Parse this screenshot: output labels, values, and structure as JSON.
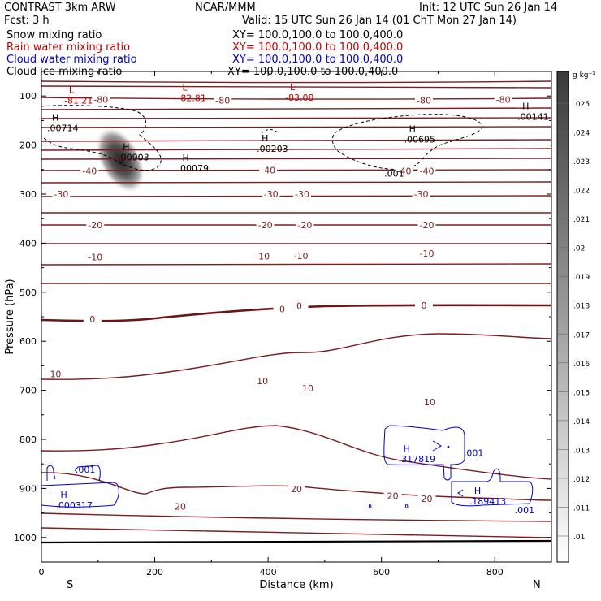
{
  "header": {
    "left1": "CONTRAST  3km ARW",
    "left2": "Fcst:    3 h",
    "center": "NCAR/MMM",
    "init": "Init: 12 UTC Sun 26 Jan 14",
    "valid": "Valid: 15 UTC Sun 26 Jan 14 (01 ChT Mon 27 Jan 14)",
    "fields": [
      {
        "name": "Snow mixing ratio",
        "xy": "XY=  100.0,100.0 to 100.0,400.0",
        "color": "#000000"
      },
      {
        "name": "Rain water mixing ratio",
        "xy": "XY=  100.0,100.0 to 100.0,400.0",
        "color": "#c00000"
      },
      {
        "name": "Cloud water mixing ratio",
        "xy": "XY=  100.0,100.0 to 100.0,400.0",
        "color": "#0000cc"
      },
      {
        "name": "Cloud ice mixing ratio",
        "xy": "XY=  100.0,100.0 to 100.0,400.0",
        "color": "#000000"
      }
    ]
  },
  "chart_data": {
    "type": "contour",
    "xlabel": "Distance (km)",
    "ylabel": "Pressure (hPa)",
    "xlim": [
      0,
      900
    ],
    "ylim": [
      1050,
      50
    ],
    "x_ticks": [
      0,
      200,
      400,
      600,
      800
    ],
    "y_ticks": [
      100,
      200,
      300,
      400,
      500,
      600,
      700,
      800,
      900,
      1000
    ],
    "x_end_labels": {
      "left": "S",
      "right": "N"
    },
    "colorbar": {
      "unit": "g kg⁻¹",
      "ticks": [
        ".01",
        ".011",
        ".012",
        ".013",
        ".014",
        ".015",
        ".016",
        ".017",
        ".018",
        ".019",
        ".02",
        ".021",
        ".022",
        ".023",
        ".024",
        ".025"
      ]
    },
    "temperature_contour_labels": [
      {
        "text": "-80",
        "x": 105,
        "p": 107
      },
      {
        "text": "-80",
        "x": 320,
        "p": 109
      },
      {
        "text": "-80",
        "x": 675,
        "p": 109
      },
      {
        "text": "-80",
        "x": 815,
        "p": 107
      },
      {
        "text": "-40",
        "x": 85,
        "p": 253
      },
      {
        "text": "-40",
        "x": 400,
        "p": 251
      },
      {
        "text": "-40",
        "x": 640,
        "p": 253
      },
      {
        "text": "-40",
        "x": 680,
        "p": 253
      },
      {
        "text": "-30",
        "x": 35,
        "p": 300
      },
      {
        "text": "-30",
        "x": 405,
        "p": 300
      },
      {
        "text": "-30",
        "x": 460,
        "p": 300
      },
      {
        "text": "-30",
        "x": 670,
        "p": 300
      },
      {
        "text": "-20",
        "x": 95,
        "p": 363
      },
      {
        "text": "-20",
        "x": 395,
        "p": 363
      },
      {
        "text": "-20",
        "x": 465,
        "p": 363
      },
      {
        "text": "-20",
        "x": 680,
        "p": 363
      },
      {
        "text": "-10",
        "x": 95,
        "p": 428
      },
      {
        "text": "-10",
        "x": 390,
        "p": 427
      },
      {
        "text": "-10",
        "x": 458,
        "p": 426
      },
      {
        "text": "-10",
        "x": 680,
        "p": 421
      },
      {
        "text": "0",
        "x": 90,
        "p": 555
      },
      {
        "text": "0",
        "x": 425,
        "p": 534
      },
      {
        "text": "0",
        "x": 455,
        "p": 528
      },
      {
        "text": "0",
        "x": 675,
        "p": 527
      },
      {
        "text": "10",
        "x": 25,
        "p": 667
      },
      {
        "text": "10",
        "x": 390,
        "p": 681
      },
      {
        "text": "10",
        "x": 470,
        "p": 696
      },
      {
        "text": "10",
        "x": 685,
        "p": 724
      },
      {
        "text": "20",
        "x": 245,
        "p": 937
      },
      {
        "text": "20",
        "x": 450,
        "p": 901
      },
      {
        "text": "20",
        "x": 620,
        "p": 915
      },
      {
        "text": "20",
        "x": 680,
        "p": 921
      }
    ],
    "extrema": [
      {
        "type": "L",
        "value": "-81.21",
        "x": 40,
        "p": 104,
        "color": "#c00000"
      },
      {
        "type": "L",
        "value": "-82.81",
        "x": 240,
        "p": 99,
        "color": "#c00000"
      },
      {
        "type": "L",
        "value": "-83.08",
        "x": 430,
        "p": 98,
        "color": "#c00000"
      },
      {
        "type": "H",
        "value": ".00714",
        "x": 10,
        "p": 160,
        "color": "#000000"
      },
      {
        "type": "H",
        "value": ".00903",
        "x": 135,
        "p": 220,
        "color": "#000000"
      },
      {
        "type": "H",
        "value": ".00079",
        "x": 240,
        "p": 242,
        "color": "#000000"
      },
      {
        "type": "H",
        "value": ".00203",
        "x": 380,
        "p": 202,
        "color": "#000000"
      },
      {
        "type": "H",
        "value": ".00695",
        "x": 640,
        "p": 183,
        "color": "#000000"
      },
      {
        "type": "H",
        "value": ".00141",
        "x": 840,
        "p": 137,
        "color": "#000000"
      },
      {
        "type": "H",
        "value": ".317819",
        "x": 630,
        "p": 835,
        "color": "#0000cc"
      },
      {
        "type": "H",
        "value": ".189413",
        "x": 755,
        "p": 921,
        "color": "#0000cc"
      },
      {
        "type": "H",
        "value": ".000317",
        "x": 25,
        "p": 929,
        "color": "#0000cc"
      }
    ],
    "other_labels": [
      {
        "text": ".001",
        "x": 605,
        "p": 258,
        "color": "#000000"
      },
      {
        "text": ".001",
        "x": 745,
        "p": 827,
        "color": "#0000cc"
      },
      {
        "text": ".001",
        "x": 835,
        "p": 944,
        "color": "#0000cc"
      },
      {
        "text": ".001",
        "x": 60,
        "p": 861,
        "color": "#0000cc"
      }
    ]
  }
}
